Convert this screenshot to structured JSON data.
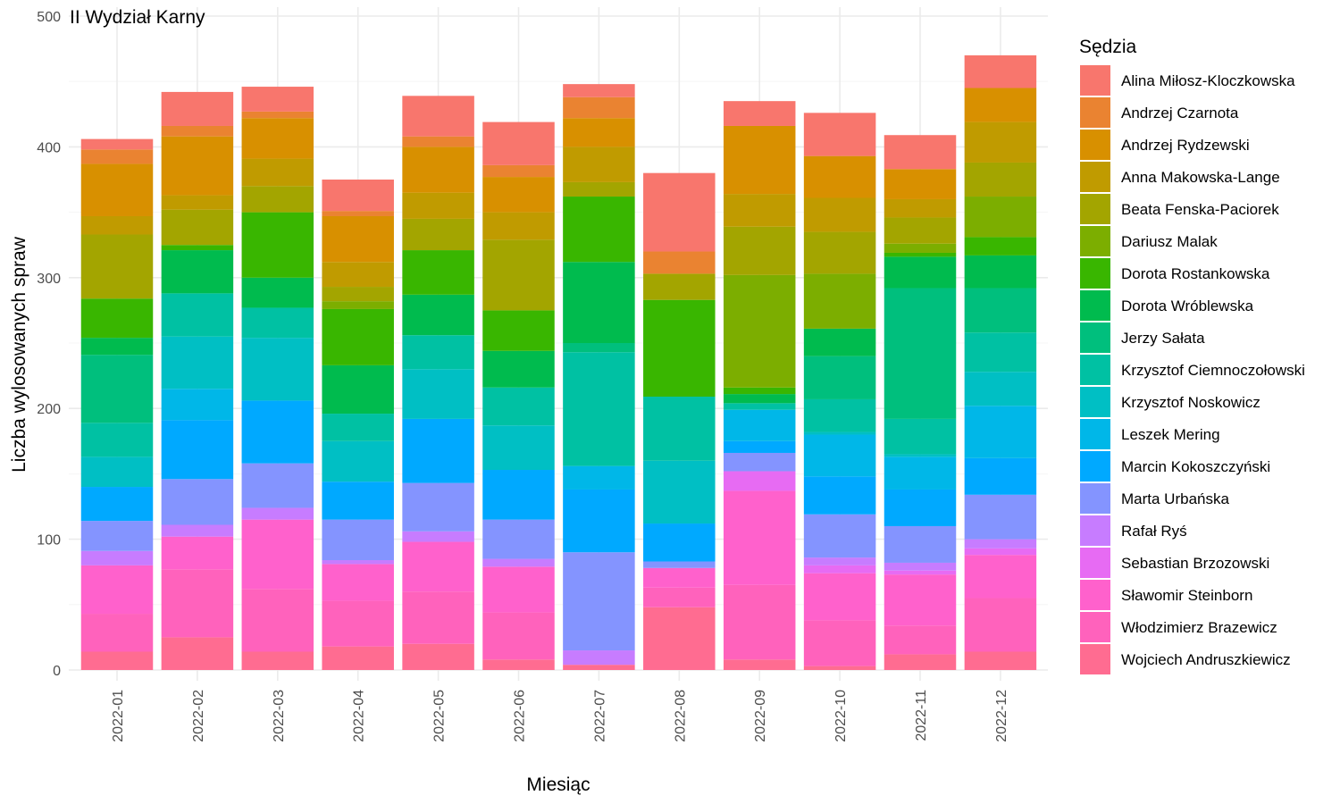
{
  "chart_data": {
    "type": "bar",
    "stacked": true,
    "title": "II Wydział Karny",
    "xlabel": "Miesiąc",
    "ylabel": "Liczba wylosowanych spraw",
    "ylim": [
      0,
      500
    ],
    "yticks": [
      0,
      100,
      200,
      300,
      400,
      500
    ],
    "grid": true,
    "legend_title": "Sędzia",
    "legend_position": "right",
    "categories": [
      "2022-01",
      "2022-02",
      "2022-03",
      "2022-04",
      "2022-05",
      "2022-06",
      "2022-07",
      "2022-08",
      "2022-09",
      "2022-10",
      "2022-11",
      "2022-12"
    ],
    "series": [
      {
        "name": "Alina Miłosz-Kloczkowska",
        "color": "#F8766D",
        "values": [
          8,
          26,
          19,
          24,
          31,
          33,
          10,
          60,
          19,
          33,
          26,
          25
        ]
      },
      {
        "name": "Andrzej Czarnota",
        "color": "#EA8331",
        "values": [
          11,
          8,
          5,
          4,
          8,
          9,
          16,
          17,
          0,
          0,
          0,
          0
        ]
      },
      {
        "name": "Andrzej Rydzewski",
        "color": "#D89000",
        "values": [
          40,
          45,
          31,
          35,
          35,
          27,
          22,
          0,
          52,
          32,
          23,
          26
        ]
      },
      {
        "name": "Anna Makowska-Lange",
        "color": "#C09B00",
        "values": [
          14,
          11,
          21,
          19,
          20,
          21,
          27,
          0,
          25,
          26,
          14,
          31
        ]
      },
      {
        "name": "Beata Fenska-Paciorek",
        "color": "#A3A500",
        "values": [
          49,
          27,
          20,
          11,
          24,
          54,
          11,
          20,
          37,
          32,
          20,
          26
        ]
      },
      {
        "name": "Dariusz Malak",
        "color": "#7CAE00",
        "values": [
          0,
          0,
          0,
          6,
          0,
          0,
          0,
          0,
          86,
          42,
          7,
          31
        ]
      },
      {
        "name": "Dorota Rostankowska",
        "color": "#39B600",
        "values": [
          30,
          4,
          50,
          43,
          34,
          31,
          50,
          74,
          5,
          0,
          3,
          14
        ]
      },
      {
        "name": "Dorota Wróblewska",
        "color": "#00BB4E",
        "values": [
          13,
          33,
          23,
          37,
          31,
          28,
          62,
          0,
          7,
          21,
          24,
          25
        ]
      },
      {
        "name": "Jerzy Sałata",
        "color": "#00BF7D",
        "values": [
          52,
          0,
          0,
          0,
          0,
          0,
          7,
          0,
          0,
          33,
          100,
          34
        ]
      },
      {
        "name": "Krzysztof Ciemnoczołowski",
        "color": "#00C1A3",
        "values": [
          26,
          33,
          23,
          21,
          26,
          29,
          87,
          49,
          5,
          25,
          27,
          30
        ]
      },
      {
        "name": "Krzysztof Noskowicz",
        "color": "#00BFC4",
        "values": [
          23,
          40,
          48,
          31,
          38,
          34,
          0,
          48,
          0,
          2,
          2,
          26
        ]
      },
      {
        "name": "Leszek Mering",
        "color": "#00B7E8",
        "values": [
          0,
          24,
          0,
          0,
          0,
          0,
          18,
          0,
          24,
          32,
          25,
          40
        ]
      },
      {
        "name": "Marcin Kokoszczyński",
        "color": "#00A9FF",
        "values": [
          26,
          45,
          48,
          29,
          49,
          38,
          48,
          29,
          9,
          29,
          28,
          28
        ]
      },
      {
        "name": "Marta Urbańska",
        "color": "#8494FF",
        "values": [
          23,
          35,
          34,
          31,
          37,
          30,
          75,
          5,
          14,
          33,
          28,
          34
        ]
      },
      {
        "name": "Rafał Ryś",
        "color": "#C77CFF",
        "values": [
          11,
          9,
          9,
          3,
          8,
          6,
          11,
          0,
          0,
          6,
          6,
          7
        ]
      },
      {
        "name": "Sebastian Brzozowski",
        "color": "#E76BF3",
        "values": [
          0,
          0,
          0,
          0,
          0,
          0,
          0,
          0,
          15,
          6,
          3,
          5
        ]
      },
      {
        "name": "Sławomir Steinborn",
        "color": "#FF61CC",
        "values": [
          37,
          25,
          53,
          28,
          38,
          35,
          0,
          15,
          72,
          36,
          39,
          33
        ]
      },
      {
        "name": "Włodzimierz Brazewicz",
        "color": "#FF62BC",
        "values": [
          29,
          52,
          48,
          35,
          40,
          36,
          0,
          15,
          57,
          35,
          22,
          41
        ]
      },
      {
        "name": "Wojciech Andruszkiewicz",
        "color": "#FF6C91",
        "values": [
          14,
          25,
          14,
          18,
          20,
          8,
          4,
          48,
          8,
          3,
          12,
          14
        ]
      }
    ]
  }
}
